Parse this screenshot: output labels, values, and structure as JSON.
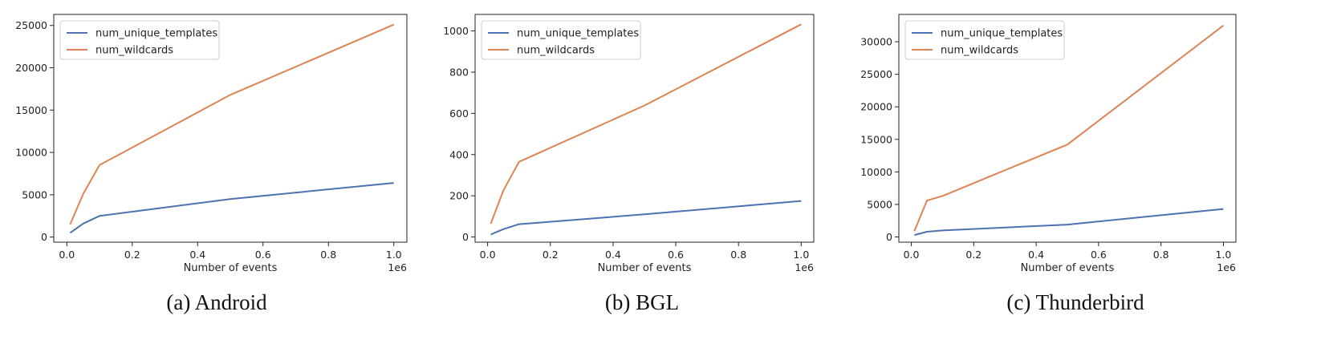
{
  "colors": {
    "num_unique_templates": "#4c72b0",
    "num_wildcards": "#dd8452"
  },
  "chart_data": [
    {
      "type": "line",
      "caption": "(a) Android",
      "xlabel": "Number of events",
      "x_offset_label": "1e6",
      "xlim": [
        -0.04,
        1.04
      ],
      "ylim": [
        -600,
        26300
      ],
      "x_ticks": [
        0.0,
        0.2,
        0.4,
        0.6,
        0.8,
        1.0
      ],
      "x_tick_labels": [
        "0.0",
        "0.2",
        "0.4",
        "0.6",
        "0.8",
        "1.0"
      ],
      "y_ticks": [
        0,
        5000,
        10000,
        15000,
        20000,
        25000
      ],
      "y_tick_labels": [
        "0",
        "5000",
        "10000",
        "15000",
        "20000",
        "25000"
      ],
      "legend": "upper left",
      "series": [
        {
          "name": "num_unique_templates",
          "x": [
            0.01,
            0.05,
            0.1,
            0.5,
            1.0
          ],
          "y": [
            500,
            1600,
            2500,
            4500,
            6400
          ]
        },
        {
          "name": "num_wildcards",
          "x": [
            0.01,
            0.05,
            0.1,
            0.5,
            1.0
          ],
          "y": [
            1500,
            5100,
            8500,
            16800,
            25100
          ]
        }
      ]
    },
    {
      "type": "line",
      "caption": "(b) BGL",
      "xlabel": "Number of events",
      "x_offset_label": "1e6",
      "xlim": [
        -0.04,
        1.04
      ],
      "ylim": [
        -25,
        1080
      ],
      "x_ticks": [
        0.0,
        0.2,
        0.4,
        0.6,
        0.8,
        1.0
      ],
      "x_tick_labels": [
        "0.0",
        "0.2",
        "0.4",
        "0.6",
        "0.8",
        "1.0"
      ],
      "y_ticks": [
        0,
        200,
        400,
        600,
        800,
        1000
      ],
      "y_tick_labels": [
        "0",
        "200",
        "400",
        "600",
        "800",
        "1000"
      ],
      "legend": "upper left",
      "series": [
        {
          "name": "num_unique_templates",
          "x": [
            0.01,
            0.05,
            0.1,
            0.5,
            1.0
          ],
          "y": [
            12,
            38,
            62,
            110,
            175
          ]
        },
        {
          "name": "num_wildcards",
          "x": [
            0.01,
            0.05,
            0.1,
            0.5,
            1.0
          ],
          "y": [
            65,
            225,
            365,
            638,
            1032
          ]
        }
      ]
    },
    {
      "type": "line",
      "caption": "(c) Thunderbird",
      "xlabel": "Number of events",
      "x_offset_label": "1e6",
      "xlim": [
        -0.04,
        1.04
      ],
      "ylim": [
        -800,
        34200
      ],
      "x_ticks": [
        0.0,
        0.2,
        0.4,
        0.6,
        0.8,
        1.0
      ],
      "x_tick_labels": [
        "0.0",
        "0.2",
        "0.4",
        "0.6",
        "0.8",
        "1.0"
      ],
      "y_ticks": [
        0,
        5000,
        10000,
        15000,
        20000,
        25000,
        30000
      ],
      "y_tick_labels": [
        "0",
        "5000",
        "10000",
        "15000",
        "20000",
        "25000",
        "30000"
      ],
      "legend": "upper left",
      "series": [
        {
          "name": "num_unique_templates",
          "x": [
            0.01,
            0.05,
            0.1,
            0.5,
            1.0
          ],
          "y": [
            300,
            800,
            1000,
            1900,
            4300
          ]
        },
        {
          "name": "num_wildcards",
          "x": [
            0.01,
            0.05,
            0.1,
            0.5,
            1.0
          ],
          "y": [
            900,
            5600,
            6300,
            14200,
            32500
          ]
        }
      ]
    }
  ]
}
